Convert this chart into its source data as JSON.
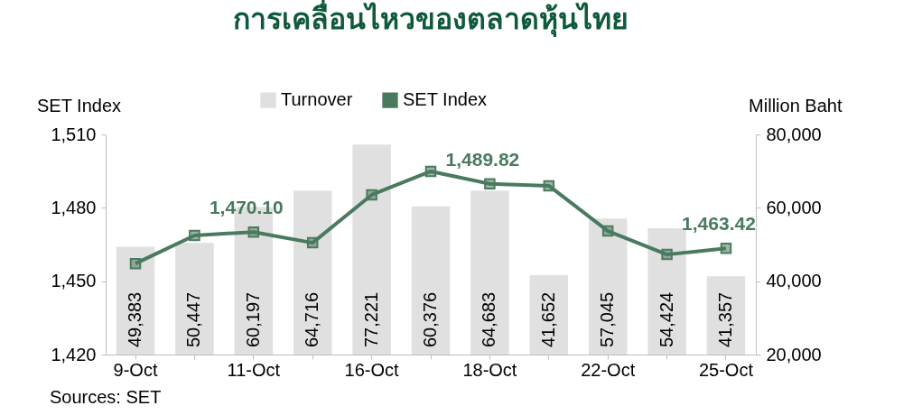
{
  "chart_data": {
    "type": "bar",
    "title": "การเคลื่อนไหวของตลาดหุ้นไทย",
    "ylabel": "SET Index",
    "y2label": "Million Baht",
    "categories": [
      "9-Oct",
      null,
      "11-Oct",
      null,
      "16-Oct",
      null,
      "18-Oct",
      null,
      "22-Oct",
      null,
      "25-Oct"
    ],
    "series": [
      {
        "name": "Turnover",
        "axis": "y2",
        "color": "#e0e0e0",
        "values": [
          49383,
          50447,
          60197,
          64716,
          77221,
          60376,
          64683,
          41652,
          57045,
          54424,
          41357
        ],
        "value_labels": [
          "49,383",
          "50,447",
          "60,197",
          "64,716",
          "77,221",
          "60,376",
          "64,683",
          "41,652",
          "57,045",
          "54,424",
          "41,357"
        ]
      },
      {
        "name": "SET Index",
        "type": "line",
        "axis": "y",
        "color": "#4a7a5e",
        "values": [
          1457.2,
          1468.7,
          1470.1,
          1465.7,
          1485.3,
          1494.9,
          1489.82,
          1489.0,
          1470.5,
          1460.9,
          1463.42
        ],
        "value_labels": [
          null,
          null,
          "1,470.10",
          null,
          null,
          null,
          "1,489.82",
          null,
          null,
          null,
          "1,463.42"
        ]
      }
    ],
    "ylim": [
      1420,
      1510
    ],
    "yticks": [
      {
        "value": 1420,
        "label": "1,420"
      },
      {
        "value": 1450,
        "label": "1,450"
      },
      {
        "value": 1480,
        "label": "1,480"
      },
      {
        "value": 1510,
        "label": "1,510"
      }
    ],
    "y2lim": [
      20000,
      80000
    ],
    "y2ticks": [
      {
        "value": 20000,
        "label": "20,000"
      },
      {
        "value": 40000,
        "label": "40,000"
      },
      {
        "value": 60000,
        "label": "60,000"
      },
      {
        "value": 80000,
        "label": "80,000"
      }
    ],
    "legend": "top",
    "marker": "square",
    "annotations": [
      "Sources: SET"
    ]
  }
}
